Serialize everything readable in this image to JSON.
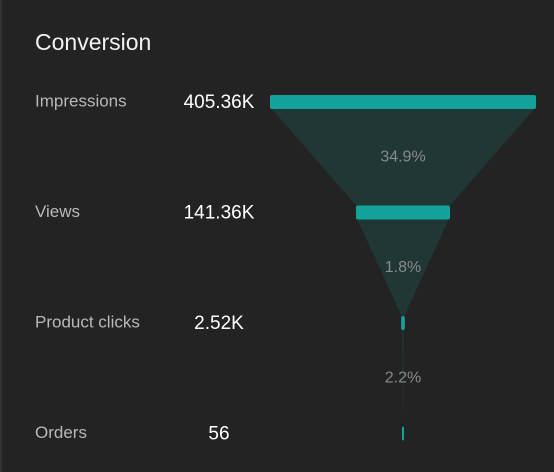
{
  "chart_data": {
    "type": "funnel",
    "title": "Conversion",
    "categories": [
      "Impressions",
      "Views",
      "Product clicks",
      "Orders"
    ],
    "values": [
      405360,
      141360,
      2520,
      56
    ],
    "value_labels": [
      "405.36K",
      "141.36K",
      "2.52K",
      "56"
    ],
    "color": "#13a39a",
    "conversion": {
      "values": [
        34.9,
        1.8,
        2.2
      ],
      "value_labels": [
        "34.9%",
        "1.8%",
        "2.2%"
      ]
    }
  }
}
